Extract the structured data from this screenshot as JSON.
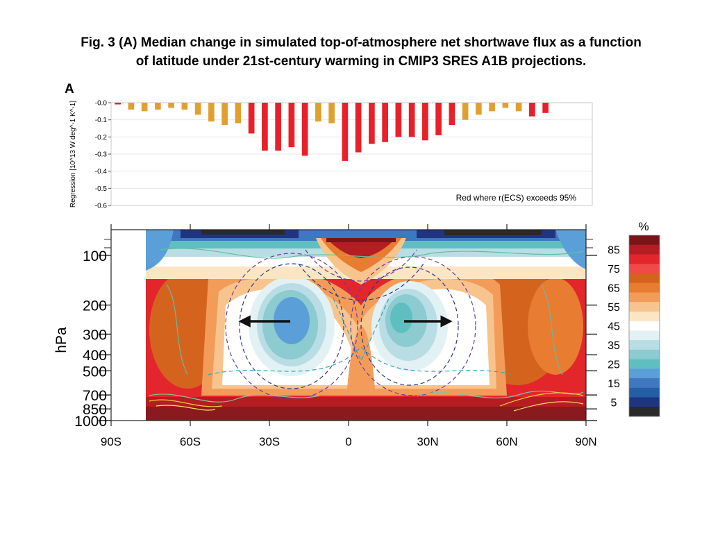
{
  "caption": {
    "line1": "Fig. 3 (A) Median change in simulated top-of-atmosphere net shortwave flux as a function",
    "line2": "of latitude under 21st-century warming in CMIP3 SRES A1B projections."
  },
  "panel_label": "A",
  "chart_data": [
    {
      "type": "bar",
      "ylabel": "Regression [10^13 W deg^-1 K^-1]",
      "ylim": [
        -0.6,
        0.0
      ],
      "yticks": [
        "-0.0",
        "-0.1",
        "-0.2",
        "-0.3",
        "-0.4",
        "-0.5",
        "-0.6"
      ],
      "xlim": [
        -90,
        90
      ],
      "annotation": "Red where r(ECS) exceeds 95%",
      "colors": {
        "significant": "#e8202a",
        "not_significant": "#e0a030"
      },
      "x": [
        -87.5,
        -82.5,
        -77.5,
        -72.5,
        -67.5,
        -62.5,
        -57.5,
        -52.5,
        -47.5,
        -42.5,
        -37.5,
        -32.5,
        -27.5,
        -22.5,
        -17.5,
        -12.5,
        -7.5,
        -2.5,
        2.5,
        7.5,
        12.5,
        17.5,
        22.5,
        27.5,
        32.5,
        37.5,
        42.5,
        47.5,
        52.5,
        57.5,
        62.5,
        67.5,
        72.5,
        77.5,
        82.5,
        87.5
      ],
      "values": [
        -0.01,
        -0.04,
        -0.05,
        -0.04,
        -0.03,
        -0.04,
        -0.07,
        -0.11,
        -0.13,
        -0.12,
        -0.18,
        -0.28,
        -0.28,
        -0.26,
        -0.31,
        -0.11,
        -0.12,
        -0.34,
        -0.29,
        -0.24,
        -0.23,
        -0.2,
        -0.2,
        -0.22,
        -0.19,
        -0.13,
        -0.1,
        -0.07,
        -0.05,
        -0.03,
        -0.05,
        -0.08,
        -0.06,
        0,
        0,
        0
      ],
      "significant": [
        true,
        false,
        false,
        false,
        false,
        false,
        false,
        false,
        false,
        false,
        true,
        true,
        true,
        true,
        true,
        false,
        false,
        true,
        true,
        true,
        true,
        true,
        true,
        true,
        true,
        true,
        false,
        false,
        false,
        false,
        false,
        true,
        true,
        false,
        false,
        false
      ]
    },
    {
      "type": "heatmap",
      "xlabel": "",
      "ylabel": "hPa",
      "x_ticks": [
        "90S",
        "60S",
        "30S",
        "0",
        "30N",
        "60N",
        "90N"
      ],
      "y_ticks": [
        "100",
        "200",
        "300",
        "400",
        "500",
        "700",
        "850",
        "1000"
      ],
      "colorbar_title": "%",
      "colorbar_ticks": [
        "85",
        "75",
        "65",
        "55",
        "45",
        "35",
        "25",
        "15",
        "5"
      ],
      "colorbar_colors": [
        "#7a1418",
        "#b51d22",
        "#e3262b",
        "#ef4a47",
        "#d4641d",
        "#e87c30",
        "#f39c5a",
        "#f7c48e",
        "#fbe5c2",
        "#ffffff",
        "#e2f1f4",
        "#b9dde4",
        "#8ccbd0",
        "#5fbfc0",
        "#5b9fd8",
        "#3f77c0",
        "#245fa5",
        "#1f3580",
        "#2a2a2a"
      ]
    }
  ]
}
